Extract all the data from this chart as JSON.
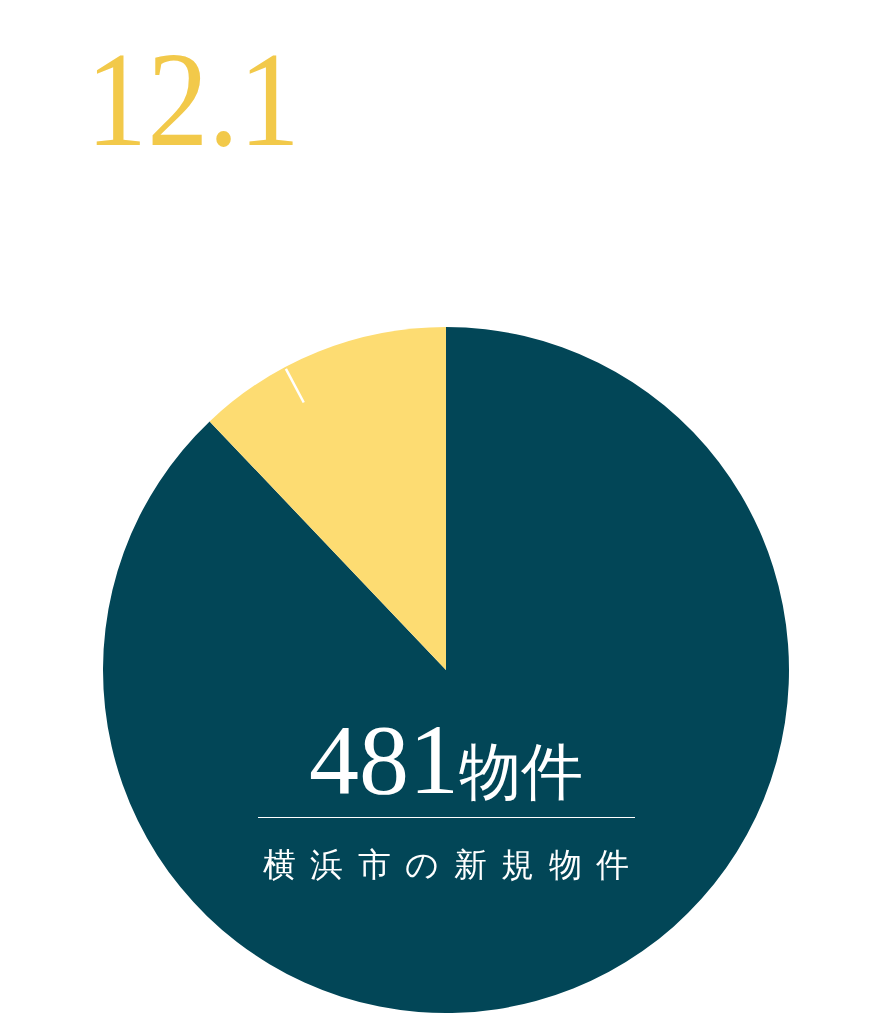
{
  "chart_data": {
    "type": "pie",
    "title": "12.1",
    "categories": [
      null,
      null
    ],
    "values": [
      87.9,
      12.1
    ],
    "colors": [
      "#024657",
      "#fddc72"
    ],
    "annotations": [
      "481物件",
      "横浜市の新規物件"
    ]
  }
}
